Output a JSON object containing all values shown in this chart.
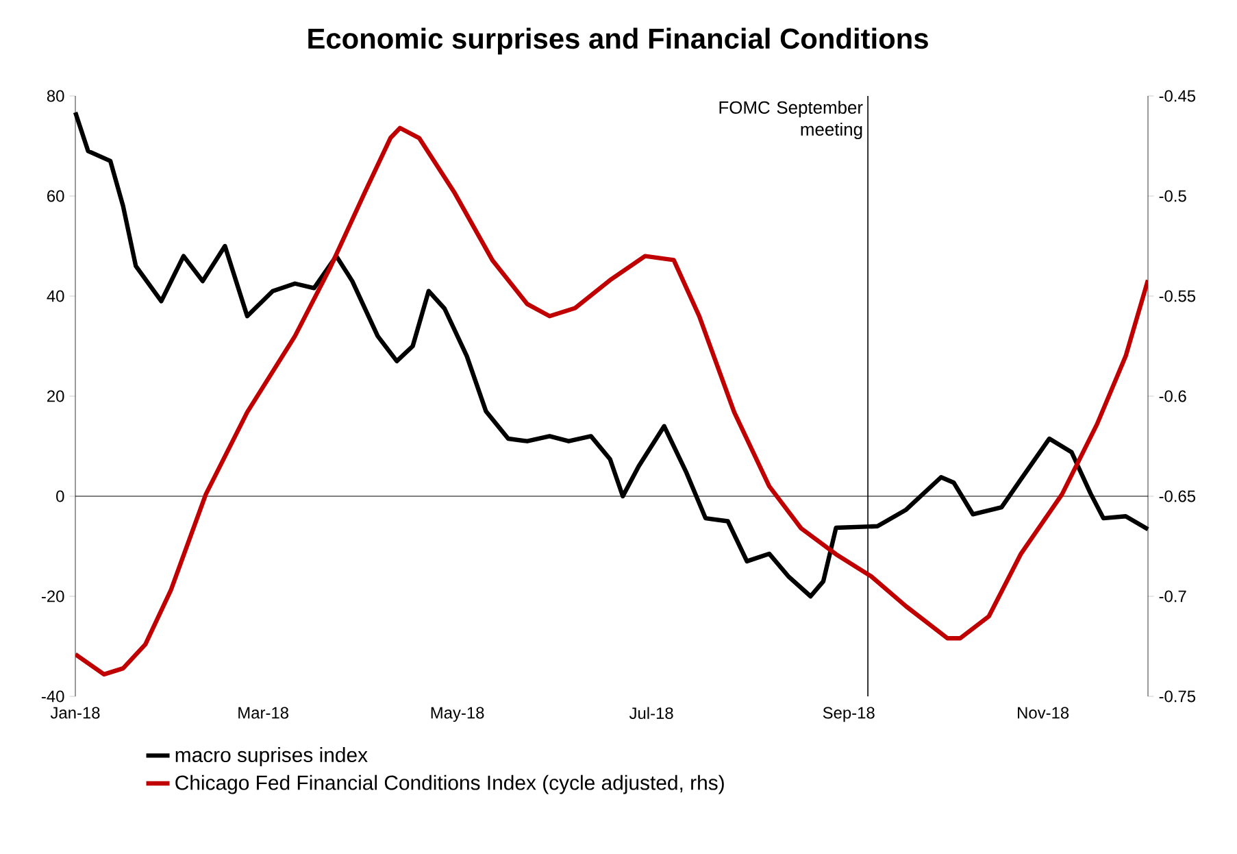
{
  "chart_data": {
    "type": "line",
    "title": "Economic surprises and Financial Conditions",
    "xlim": [
      "2018-01-01",
      "2018-12-04"
    ],
    "xticks": [
      {
        "value": "2018-01-01",
        "label": "Jan-18"
      },
      {
        "value": "2018-03-01",
        "label": "Mar-18"
      },
      {
        "value": "2018-05-01",
        "label": "May-18"
      },
      {
        "value": "2018-07-01",
        "label": "Jul-18"
      },
      {
        "value": "2018-09-01",
        "label": "Sep-18"
      },
      {
        "value": "2018-11-01",
        "label": "Nov-18"
      }
    ],
    "ylim": [
      -40,
      80
    ],
    "yticks": [
      -40,
      -20,
      0,
      20,
      40,
      60,
      80
    ],
    "y2lim": [
      -0.75,
      -0.45
    ],
    "y2ticks": [
      -0.75,
      -0.7,
      -0.65,
      -0.6,
      -0.55,
      -0.5,
      -0.45
    ],
    "legend": "bottom",
    "line_style": "solid",
    "ref_lines": [
      {
        "axis": "x",
        "value": "2018-09-07",
        "label": "FOMC September meeting",
        "color": "#000000"
      }
    ],
    "series": [
      {
        "name": "macro suprises index",
        "color": "#000000",
        "x": [
          "2018-01-01",
          "2018-01-05",
          "2018-01-12",
          "2018-01-16",
          "2018-01-20",
          "2018-01-28",
          "2018-02-04",
          "2018-02-10",
          "2018-02-17",
          "2018-02-24",
          "2018-03-04",
          "2018-03-11",
          "2018-03-17",
          "2018-03-24",
          "2018-03-29",
          "2018-04-06",
          "2018-04-12",
          "2018-04-17",
          "2018-04-22",
          "2018-04-27",
          "2018-05-04",
          "2018-05-10",
          "2018-05-17",
          "2018-05-23",
          "2018-05-30",
          "2018-06-05",
          "2018-06-12",
          "2018-06-18",
          "2018-06-22",
          "2018-06-27",
          "2018-07-05",
          "2018-07-12",
          "2018-07-18",
          "2018-07-25",
          "2018-07-31",
          "2018-08-07",
          "2018-08-13",
          "2018-08-20",
          "2018-08-24",
          "2018-08-28",
          "2018-09-10",
          "2018-09-19",
          "2018-09-30",
          "2018-10-04",
          "2018-10-10",
          "2018-10-19",
          "2018-10-25",
          "2018-11-03",
          "2018-11-10",
          "2018-11-16",
          "2018-11-20",
          "2018-11-27",
          "2018-12-04"
        ],
        "values": [
          76.7,
          69,
          67,
          58,
          46,
          39,
          48,
          43,
          50,
          36,
          41,
          42.5,
          41.6,
          48,
          43,
          32,
          27,
          30,
          41,
          37.5,
          28,
          17,
          11.5,
          11,
          12,
          11,
          12,
          7.4,
          0,
          6,
          14,
          4.7,
          -4.4,
          -5,
          -13,
          -11.5,
          -16,
          -20,
          -17,
          -6.3,
          -6,
          -2.7,
          3.8,
          2.7,
          -3.6,
          -2.2,
          3.3,
          11.5,
          8.8,
          0.5,
          -4.4,
          -4,
          -6.6
        ]
      },
      {
        "name": "Chicago Fed Financial Conditions Index (cycle adjusted, rhs)",
        "color": "#c00000",
        "axis": "y2",
        "x": [
          "2018-01-01",
          "2018-01-10",
          "2018-01-16",
          "2018-01-23",
          "2018-01-31",
          "2018-02-11",
          "2018-02-24",
          "2018-03-11",
          "2018-03-22",
          "2018-04-02",
          "2018-04-10",
          "2018-04-13",
          "2018-04-19",
          "2018-04-30",
          "2018-05-12",
          "2018-05-23",
          "2018-05-30",
          "2018-06-07",
          "2018-06-18",
          "2018-06-29",
          "2018-07-08",
          "2018-07-16",
          "2018-07-27",
          "2018-08-07",
          "2018-08-17",
          "2018-08-28",
          "2018-09-08",
          "2018-09-19",
          "2018-10-02",
          "2018-10-06",
          "2018-10-15",
          "2018-10-25",
          "2018-11-07",
          "2018-11-18",
          "2018-11-27",
          "2018-12-04"
        ],
        "values": [
          -0.729,
          -0.739,
          -0.736,
          -0.724,
          -0.697,
          -0.649,
          -0.608,
          -0.57,
          -0.536,
          -0.498,
          -0.471,
          -0.466,
          -0.471,
          -0.498,
          -0.532,
          -0.554,
          -0.56,
          -0.556,
          -0.542,
          -0.53,
          -0.532,
          -0.56,
          -0.608,
          -0.645,
          -0.666,
          -0.679,
          -0.69,
          -0.705,
          -0.721,
          -0.721,
          -0.71,
          -0.679,
          -0.649,
          -0.614,
          -0.58,
          -0.542
        ]
      }
    ]
  }
}
